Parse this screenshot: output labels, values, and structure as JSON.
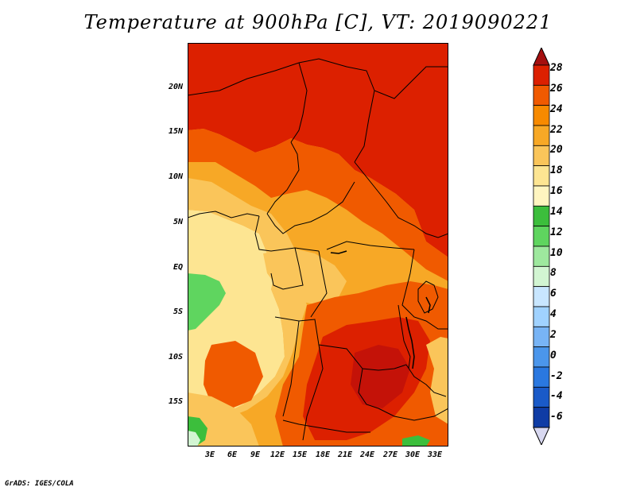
{
  "title": "Temperature at 900hPa [C], VT: 2019090221",
  "credit": "GrADS: IGES/COLA",
  "y_ticks": [
    "20N",
    "15N",
    "10N",
    "5N",
    "EQ",
    "5S",
    "10S",
    "15S"
  ],
  "x_ticks": [
    "3E",
    "6E",
    "9E",
    "12E",
    "15E",
    "18E",
    "21E",
    "24E",
    "27E",
    "30E",
    "33E"
  ],
  "colorbar": {
    "labels": [
      "28",
      "26",
      "24",
      "22",
      "20",
      "18",
      "16",
      "14",
      "12",
      "10",
      "8",
      "6",
      "4",
      "2",
      "0",
      "-2",
      "-4",
      "-6"
    ],
    "colors": [
      "#a50f0f",
      "#dc2000",
      "#f05a00",
      "#f78a00",
      "#f7a826",
      "#fac55a",
      "#fde592",
      "#fff5c0",
      "#3cbe3c",
      "#5fd55f",
      "#9ee89e",
      "#d2f5d2",
      "#c8e6ff",
      "#a0d2ff",
      "#78b4f5",
      "#4b96eb",
      "#2a78e0",
      "#1a5ac8",
      "#0f3ca5",
      "#101e78"
    ]
  }
}
